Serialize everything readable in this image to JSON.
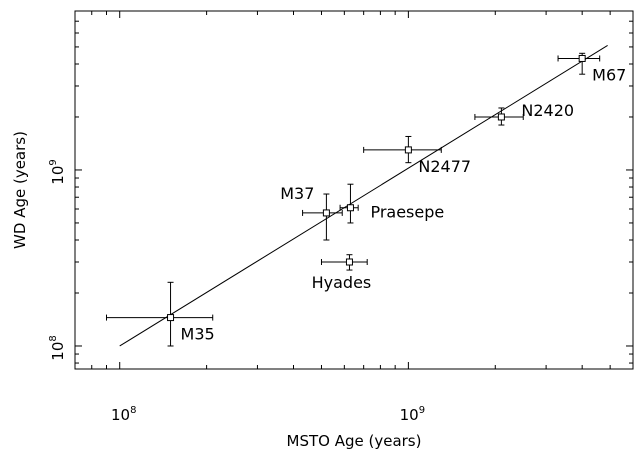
{
  "chart_data": {
    "type": "scatter",
    "x_scale": "log",
    "y_scale": "log",
    "xlabel": "MSTO Age (years)",
    "ylabel": "WD Age (years)",
    "xlim": [
      70000000.0,
      6000000000.0
    ],
    "ylim": [
      74000000.0,
      8000000000.0
    ],
    "x_ticks": [
      {
        "value": 100000000.0,
        "base": "10",
        "exp": "8"
      },
      {
        "value": 1000000000.0,
        "base": "10",
        "exp": "9"
      }
    ],
    "y_ticks": [
      {
        "value": 100000000.0,
        "base": "10",
        "exp": "8"
      },
      {
        "value": 1000000000.0,
        "base": "10",
        "exp": "9"
      }
    ],
    "series": [
      {
        "points": [
          {
            "label": "M35",
            "x": 150000000.0,
            "y": 145000000.0,
            "xerr": [
              90000000.0,
              210000000.0
            ],
            "yerr": [
              100000000.0,
              230000000.0
            ],
            "label_pos": "below-right"
          },
          {
            "label": "M37",
            "x": 520000000.0,
            "y": 570000000.0,
            "xerr": [
              430000000.0,
              590000000.0
            ],
            "yerr": [
              400000000.0,
              730000000.0
            ],
            "label_pos": "upper-left"
          },
          {
            "label": "Praesepe",
            "x": 630000000.0,
            "y": 610000000.0,
            "xerr": [
              580000000.0,
              670000000.0
            ],
            "yerr": [
              500000000.0,
              830000000.0
            ],
            "label_pos": "right"
          },
          {
            "label": "Hyades",
            "x": 625000000.0,
            "y": 300000000.0,
            "xerr": [
              500000000.0,
              720000000.0
            ],
            "yerr": [
              270000000.0,
              330000000.0
            ],
            "label_pos": "below"
          },
          {
            "label": "N2477",
            "x": 1000000000.0,
            "y": 1300000000.0,
            "xerr": [
              700000000.0,
              1300000000.0
            ],
            "yerr": [
              1100000000.0,
              1550000000.0
            ],
            "label_pos": "below-right"
          },
          {
            "label": "N2420",
            "x": 2100000000.0,
            "y": 2000000000.0,
            "xerr": [
              1700000000.0,
              2500000000.0
            ],
            "yerr": [
              1800000000.0,
              2250000000.0
            ],
            "label_pos": "upper-right"
          },
          {
            "label": "M67",
            "x": 4000000000.0,
            "y": 4300000000.0,
            "xerr": [
              3300000000.0,
              4600000000.0
            ],
            "yerr": [
              3500000000.0,
              4600000000.0
            ],
            "label_pos": "below-right"
          }
        ]
      }
    ],
    "reference_line": {
      "x": [
        100000000.0,
        4900000000.0
      ],
      "y": [
        100000000.0,
        5100000000.0
      ]
    }
  }
}
